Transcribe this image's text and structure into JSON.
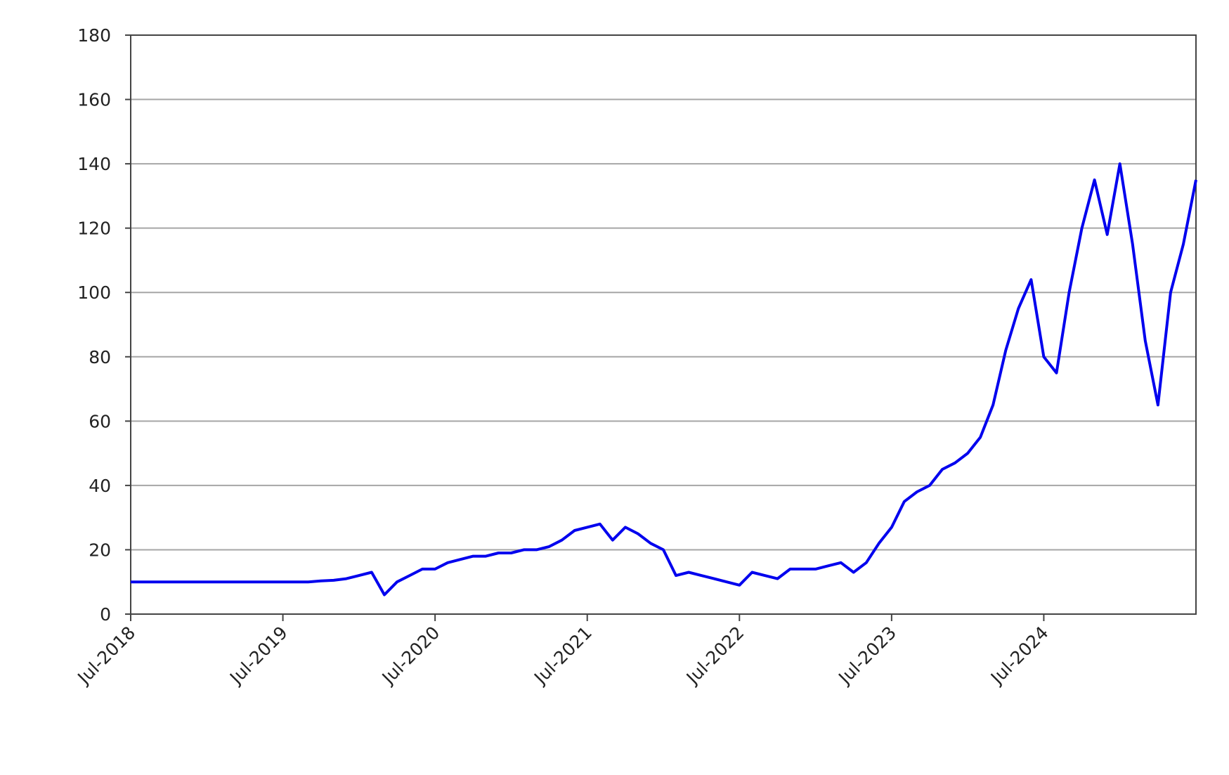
{
  "chart_data": {
    "type": "line",
    "x": [
      "2018-07",
      "2018-08",
      "2018-09",
      "2018-10",
      "2018-11",
      "2018-12",
      "2019-01",
      "2019-02",
      "2019-03",
      "2019-04",
      "2019-05",
      "2019-06",
      "2019-07",
      "2019-08",
      "2019-09",
      "2019-10",
      "2019-11",
      "2019-12",
      "2020-01",
      "2020-02",
      "2020-03",
      "2020-04",
      "2020-05",
      "2020-06",
      "2020-07",
      "2020-08",
      "2020-09",
      "2020-10",
      "2020-11",
      "2020-12",
      "2021-01",
      "2021-02",
      "2021-03",
      "2021-04",
      "2021-05",
      "2021-06",
      "2021-07",
      "2021-08",
      "2021-09",
      "2021-10",
      "2021-11",
      "2021-12",
      "2022-01",
      "2022-02",
      "2022-03",
      "2022-04",
      "2022-05",
      "2022-06",
      "2022-07",
      "2022-08",
      "2022-09",
      "2022-10",
      "2022-11",
      "2022-12",
      "2023-01",
      "2023-02",
      "2023-03",
      "2023-04",
      "2023-05",
      "2023-06",
      "2023-07",
      "2023-08",
      "2023-09",
      "2023-10",
      "2023-11",
      "2023-12",
      "2024-01",
      "2024-02",
      "2024-03",
      "2024-04",
      "2024-05",
      "2024-06",
      "2024-07",
      "2024-08",
      "2024-09",
      "2024-10",
      "2024-11",
      "2024-12",
      "2025-01",
      "2025-02",
      "2025-03",
      "2025-04",
      "2025-05",
      "2025-06",
      "2025-07"
    ],
    "series": [
      {
        "color": "#0000ee",
        "values": [
          10,
          10,
          10,
          10,
          10,
          10,
          10,
          10,
          10,
          10,
          10,
          10,
          10,
          10,
          10,
          10.3,
          10.5,
          11,
          12,
          13,
          6,
          10,
          12,
          14,
          14,
          16,
          17,
          18,
          18,
          19,
          19,
          20,
          20,
          21,
          23,
          26,
          27,
          28,
          23,
          27,
          25,
          22,
          20,
          12,
          13,
          12,
          11,
          10,
          9,
          13,
          12,
          11,
          14,
          14,
          14,
          15,
          16,
          13,
          16,
          22,
          27,
          35,
          38,
          40,
          45,
          47,
          50,
          55,
          65,
          82,
          95,
          104,
          80,
          75,
          100,
          120,
          135,
          118,
          140,
          115,
          85,
          65,
          100,
          115,
          135
        ]
      }
    ],
    "xlim": [
      "2018-07",
      "2025-07"
    ],
    "xticks": [
      {
        "value": "2018-07",
        "label": "Jul-2018"
      },
      {
        "value": "2019-07",
        "label": "Jul-2019"
      },
      {
        "value": "2020-07",
        "label": "Jul-2020"
      },
      {
        "value": "2021-07",
        "label": "Jul-2021"
      },
      {
        "value": "2022-07",
        "label": "Jul-2022"
      },
      {
        "value": "2023-07",
        "label": "Jul-2023"
      },
      {
        "value": "2024-07",
        "label": "Jul-2024"
      }
    ],
    "ylim": [
      0,
      180
    ],
    "yticks": [
      0,
      20,
      40,
      60,
      80,
      100,
      120,
      140,
      160,
      180
    ],
    "grid": true
  }
}
